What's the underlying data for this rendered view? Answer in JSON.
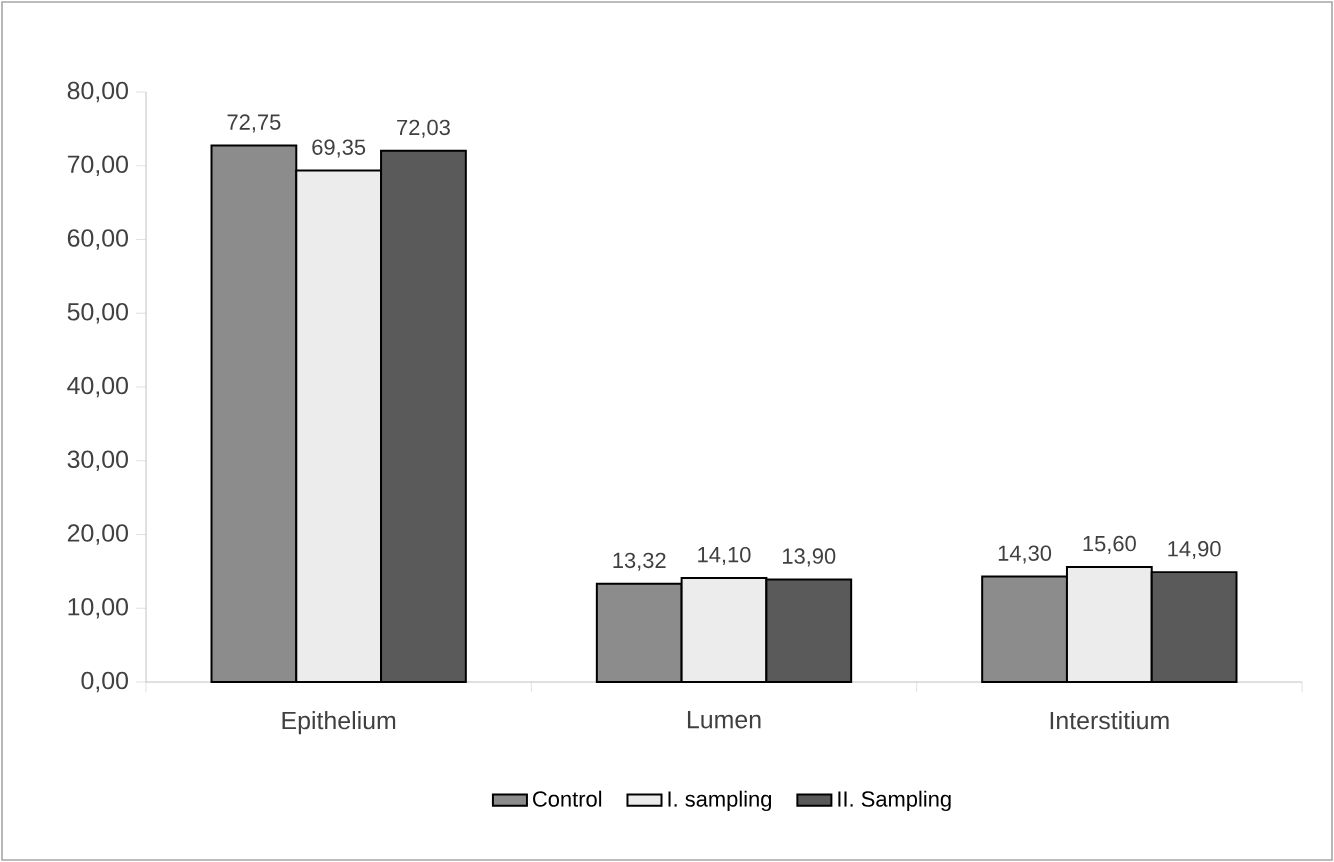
{
  "chart_data": {
    "type": "bar",
    "categories": [
      "Epithelium",
      "Lumen",
      "Interstitium"
    ],
    "series": [
      {
        "name": "Control",
        "color": "#8c8c8c",
        "values": [
          72.75,
          13.32,
          14.3
        ],
        "value_labels": [
          "72,75",
          "13,32",
          "14,30"
        ]
      },
      {
        "name": "I. sampling",
        "color": "#ececec",
        "values": [
          69.35,
          14.1,
          15.6
        ],
        "value_labels": [
          "69,35",
          "14,10",
          "15,60"
        ]
      },
      {
        "name": "II. Sampling",
        "color": "#5a5a5a",
        "values": [
          72.03,
          13.9,
          14.9
        ],
        "value_labels": [
          "72,03",
          "13,90",
          "14,90"
        ]
      }
    ],
    "ylim": [
      0,
      80
    ],
    "yticks": [
      {
        "value": 0,
        "label": "0,00"
      },
      {
        "value": 10,
        "label": "10,00"
      },
      {
        "value": 20,
        "label": "20,00"
      },
      {
        "value": 30,
        "label": "30,00"
      },
      {
        "value": 40,
        "label": "40,00"
      },
      {
        "value": 50,
        "label": "50,00"
      },
      {
        "value": 60,
        "label": "60,00"
      },
      {
        "value": 70,
        "label": "70,00"
      },
      {
        "value": 80,
        "label": "80,00"
      }
    ],
    "grid": false,
    "legend": "bottom"
  }
}
